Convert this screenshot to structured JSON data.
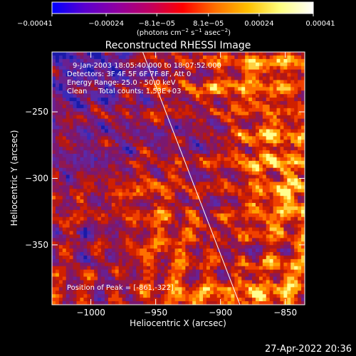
{
  "chart_data": {
    "type": "heatmap",
    "title": "Reconstructed RHESSI Image",
    "xlabel": "Heliocentric X (arcsec)",
    "ylabel": "Heliocentric Y (arcsec)",
    "xlim": [
      -1030,
      -835
    ],
    "ylim": [
      -395,
      -205
    ],
    "x_ticks": [
      -1000,
      -950,
      -900,
      -850
    ],
    "x_tick_labels": [
      "−1000",
      "−950",
      "−900",
      "−850"
    ],
    "y_ticks": [
      -250,
      -300,
      -350
    ],
    "y_tick_labels": [
      "−250",
      "−300",
      "−350"
    ],
    "colorbar": {
      "min": -0.00041,
      "max": 0.00041,
      "tick_labels": [
        "−0.00041",
        "−0.00024",
        "−8.1e−05",
        "8.1e−05",
        "0.00024",
        "0.00041"
      ],
      "units_main": "(photons cm",
      "units_exp1": "−2",
      "units_mid": " s",
      "units_exp2": "−1",
      "units_mid2": " asec",
      "units_exp3": "−2",
      "units_end": ")",
      "stops": [
        "#0000ff",
        "#5a00d0",
        "#9000a0",
        "#c00060",
        "#ff0000",
        "#ff7000",
        "#ffc000",
        "#ffff80",
        "#ffffff"
      ]
    },
    "peak_position": [
      -861,
      -322
    ],
    "limb_line": [
      [
        -960,
        -205
      ],
      [
        -885,
        -395
      ]
    ]
  },
  "annotations": {
    "line1": "9-Jan-2003 18:05:40.000 to 18:07:52.000",
    "line2": "Detectors: 3F 4F 5F 6F 7F 8F, Att 0",
    "line3": "Energy Range: 25.0 - 50.0 keV",
    "line4": "Clean     Total counts: 1.53E+03",
    "peak": "Position of Peak = [-861,-322]"
  },
  "timestamp": "27-Apr-2022 20:36"
}
